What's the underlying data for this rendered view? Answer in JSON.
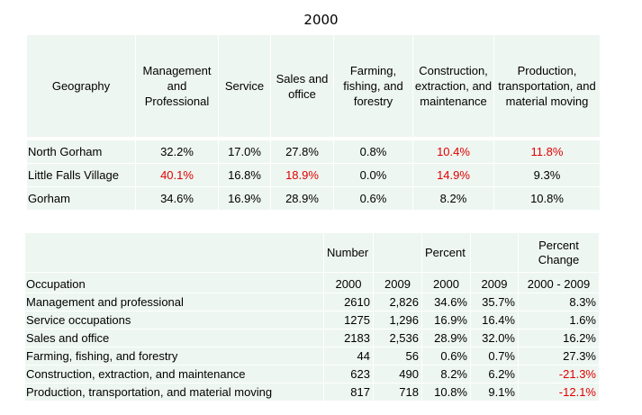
{
  "title": "2000",
  "table1": {
    "headers": [
      "Geography",
      "Management and Professional",
      "Service",
      "Sales and office",
      "Farming, fishing, and forestry",
      "Construction, extraction, and maintenance",
      "Production, transportation, and material moving"
    ],
    "rows": [
      {
        "geography": "North Gorham",
        "cells": [
          "32.2%",
          "17.0%",
          "27.8%",
          "0.8%",
          "10.4%",
          "11.8%"
        ]
      },
      {
        "geography": "Little Falls Village",
        "cells": [
          "40.1%",
          "16.8%",
          "18.9%",
          "0.0%",
          "14.9%",
          "9.3%"
        ]
      },
      {
        "geography": "Gorham",
        "cells": [
          "34.6%",
          "16.9%",
          "28.9%",
          "0.6%",
          "8.2%",
          "10.8%"
        ]
      }
    ],
    "highlight_color": "#e00000"
  },
  "table2": {
    "group_headers": {
      "number": "Number",
      "percent": "Percent",
      "percent_change": "Percent Change"
    },
    "sub_headers": [
      "Occupation",
      "2000",
      "2009",
      "2000",
      "2009",
      "2000 - 2009"
    ],
    "rows": [
      {
        "occupation": "Management and professional",
        "n2000": "2610",
        "n2009": "2,826",
        "p2000": "34.6%",
        "p2009": "35.7%",
        "change": "8.3%"
      },
      {
        "occupation": "Service occupations",
        "n2000": "1275",
        "n2009": "1,296",
        "p2000": "16.9%",
        "p2009": "16.4%",
        "change": "1.6%"
      },
      {
        "occupation": "Sales and office",
        "n2000": "2183",
        "n2009": "2,536",
        "p2000": "28.9%",
        "p2009": "32.0%",
        "change": "16.2%"
      },
      {
        "occupation": "Farming, fishing, and forestry",
        "n2000": "44",
        "n2009": "56",
        "p2000": "0.6%",
        "p2009": "0.7%",
        "change": "27.3%"
      },
      {
        "occupation": "Construction, extraction, and maintenance",
        "n2000": "623",
        "n2009": "490",
        "p2000": "8.2%",
        "p2009": "6.2%",
        "change": "-21.3%"
      },
      {
        "occupation": "Production, transportation, and material moving",
        "n2000": "817",
        "n2009": "718",
        "p2000": "10.8%",
        "p2009": "9.1%",
        "change": "-12.1%"
      }
    ]
  }
}
